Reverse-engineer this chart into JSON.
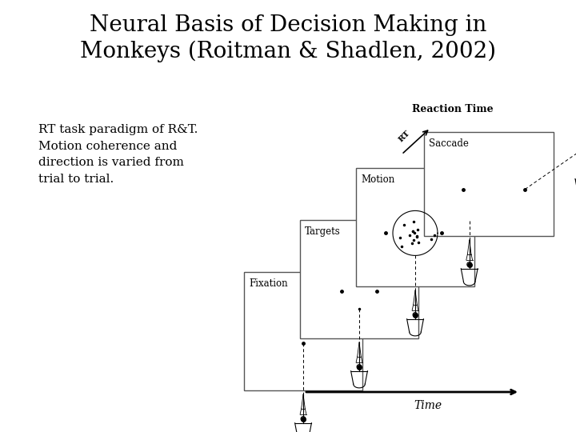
{
  "title_line1": "Neural Basis of Decision Making in",
  "title_line2": "Monkeys (Roitman & Shadlen, 2002)",
  "body_text": "RT task paradigm of R&T.\nMotion coherence and\ndirection is varied from\ntrial to trial.",
  "background_color": "#ffffff",
  "title_fontsize": 20,
  "body_fontsize": 11,
  "title_font": "DejaVu Serif",
  "body_font": "DejaVu Serif",
  "reaction_time_label": "Reaction Time",
  "time_label": "Time"
}
